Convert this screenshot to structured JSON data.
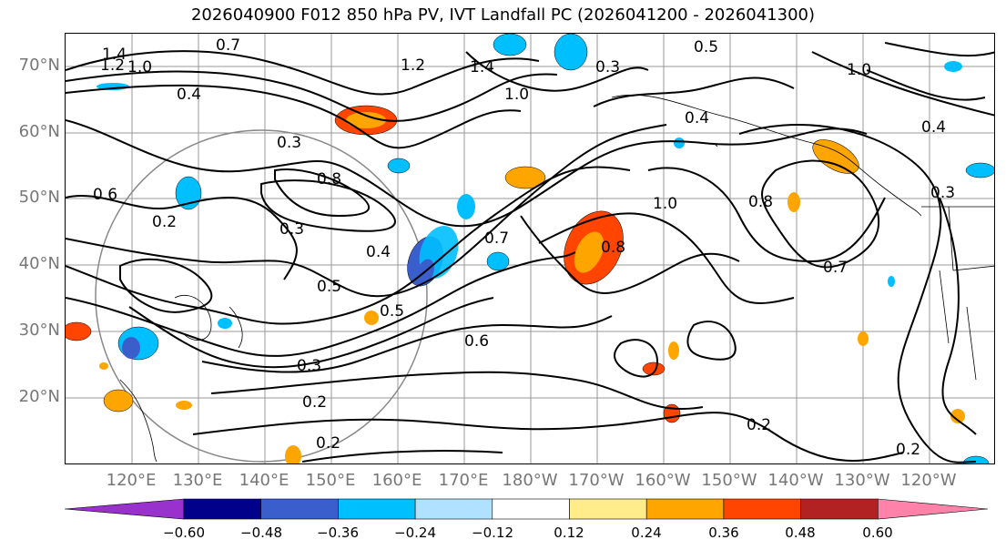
{
  "title": "2026040900 F012 850 hPa PV, IVT Landfall PC (2026041200 - 2026041300)",
  "map": {
    "lat_labels": [
      "70°N",
      "60°N",
      "50°N",
      "40°N",
      "30°N",
      "20°N"
    ],
    "lon_labels": [
      "120°E",
      "130°E",
      "140°E",
      "150°E",
      "160°E",
      "170°E",
      "180°W",
      "170°W",
      "160°W",
      "150°W",
      "140°W",
      "130°W",
      "120°W"
    ],
    "contour_labels": [
      "1.4",
      "1.2",
      "1.0",
      "0.4",
      "0.7",
      "0.3",
      "0.6",
      "0.2",
      "0.5",
      "0.8",
      "0.3",
      "0.2",
      "0.6",
      "0.3",
      "0.2",
      "0.5",
      "1.2",
      "1.4",
      "1.0",
      "0.3",
      "0.4",
      "0.8",
      "1.0",
      "0.7",
      "0.8",
      "0.2",
      "0.2",
      "0.4",
      "0.3",
      "1.0",
      "0.5",
      "0.4",
      "0.7"
    ]
  },
  "colorbar": {
    "ticks": [
      "−0.60",
      "−0.48",
      "−0.36",
      "−0.24",
      "−0.12",
      "0.12",
      "0.24",
      "0.36",
      "0.48",
      "0.60"
    ],
    "colors": [
      "#9932cc",
      "#00008b",
      "#3a5fcd",
      "#00bfff",
      "#b0e2ff",
      "#ffffff",
      "#ffec8b",
      "#ffa500",
      "#ff4500",
      "#b22222",
      "#ff82ab"
    ]
  }
}
